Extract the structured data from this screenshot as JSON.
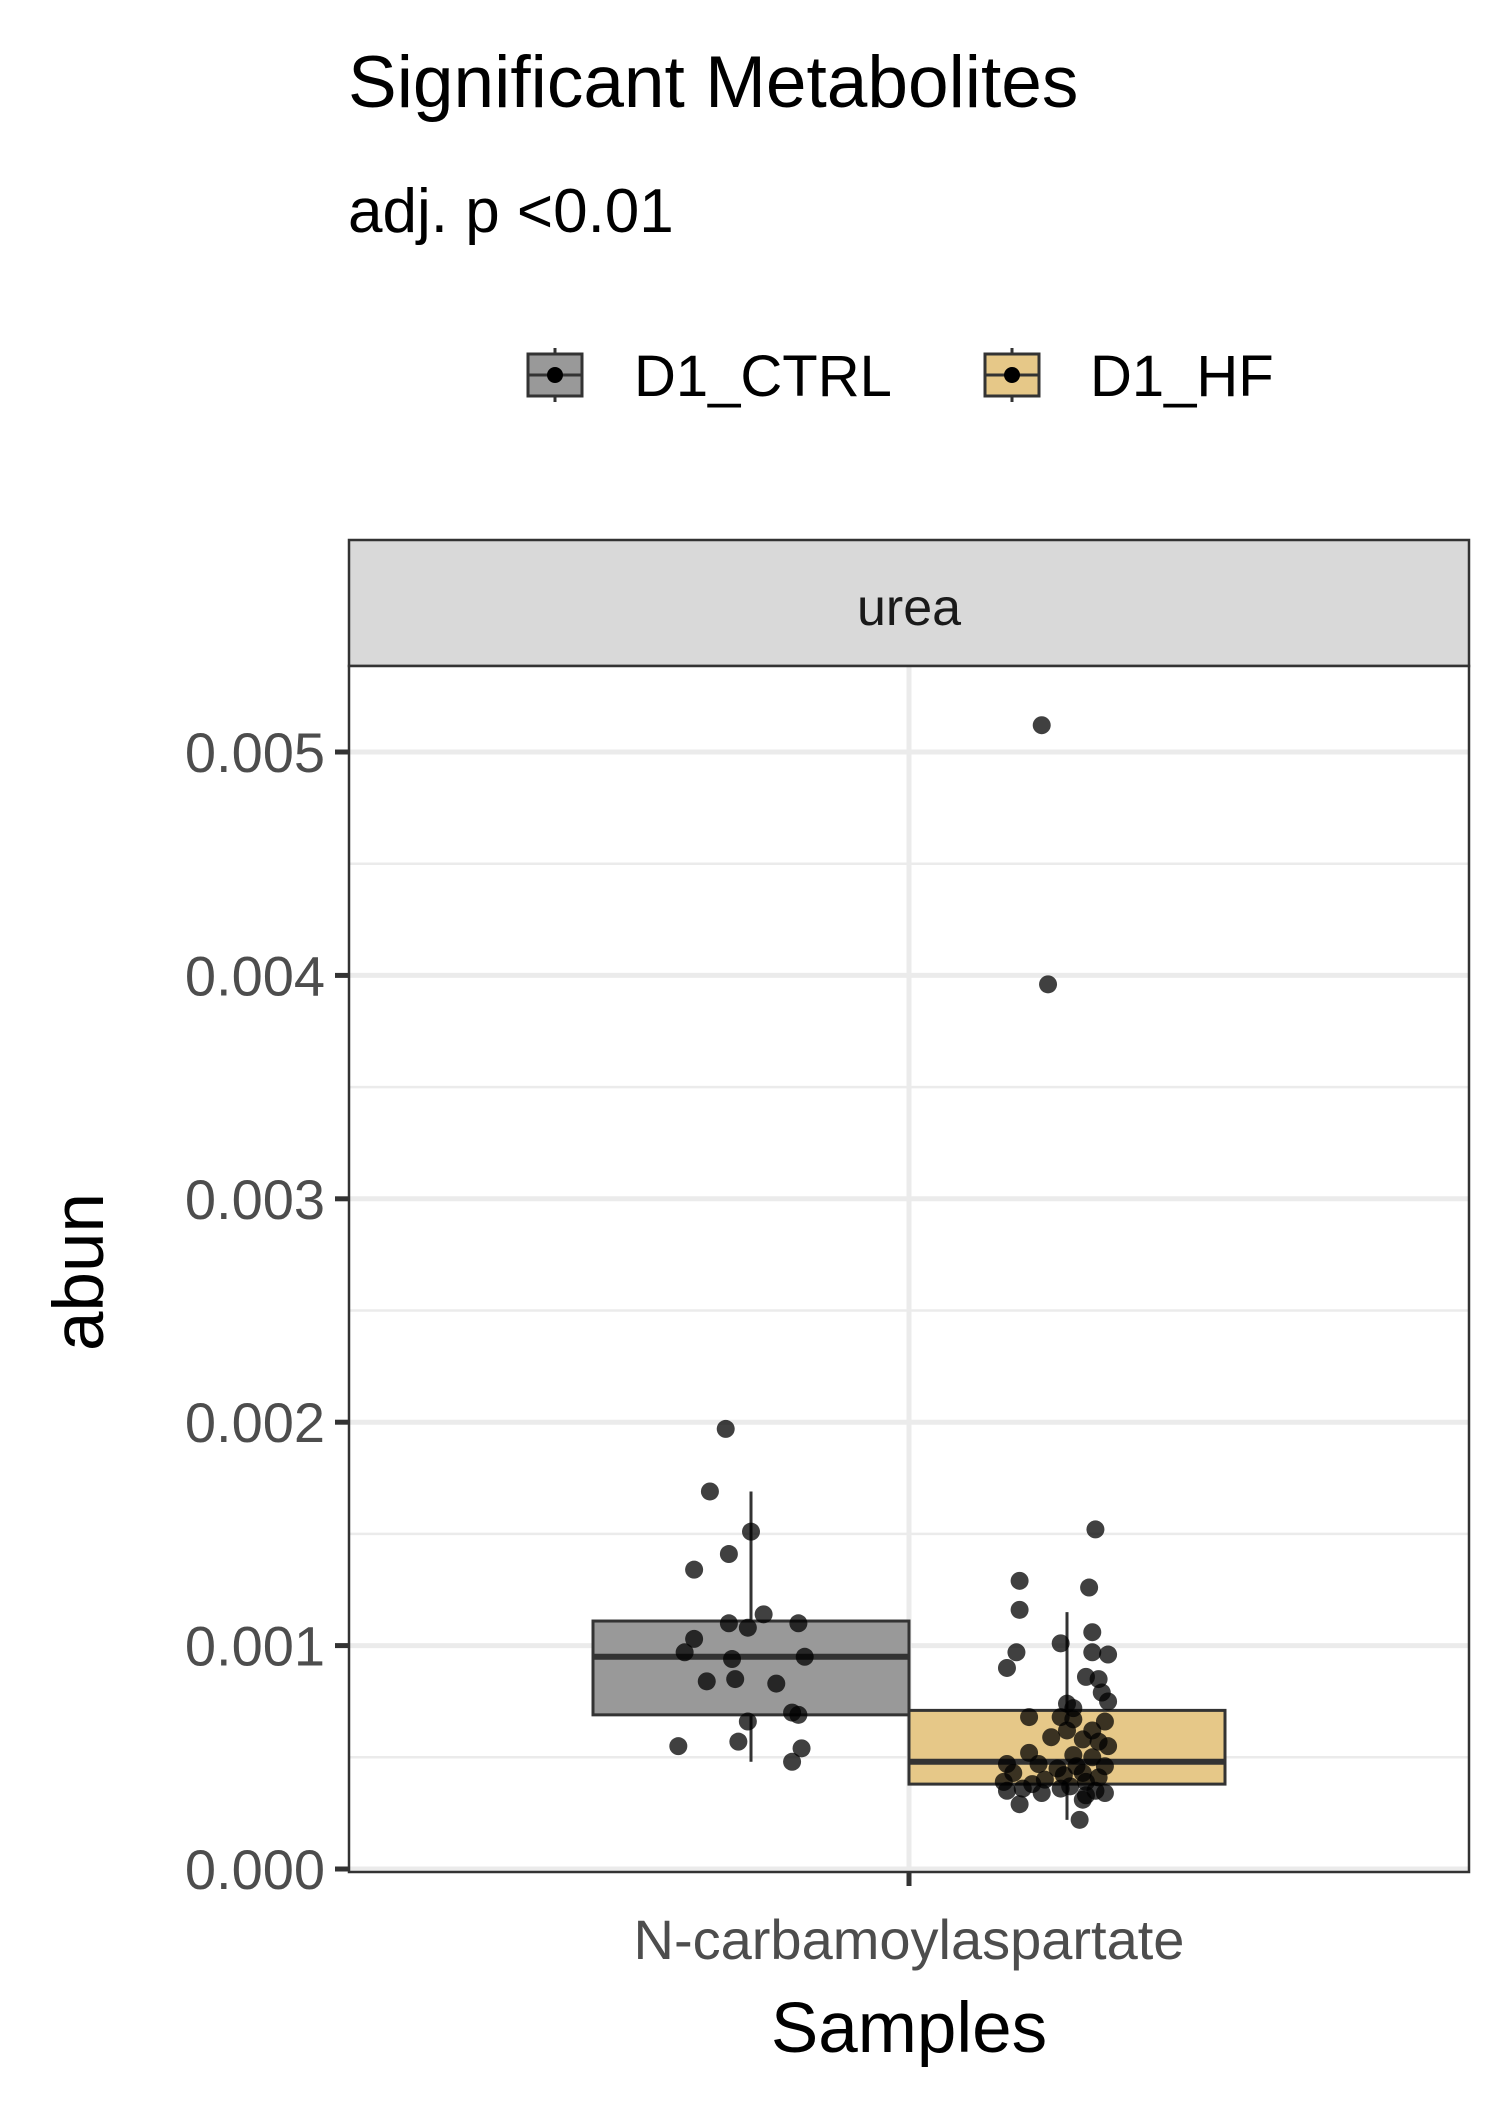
{
  "chart_data": {
    "type": "box",
    "title": "Significant Metabolites",
    "subtitle": "adj. p <0.01",
    "facet_label": "urea",
    "xlabel": "Samples",
    "ylabel": "abun",
    "categories": [
      "N-carbamoylaspartate"
    ],
    "ylim": [
      -5e-05,
      0.0054
    ],
    "yticks": [
      0,
      0.001,
      0.002,
      0.003,
      0.004,
      0.005
    ],
    "ytick_labels": [
      "0.000",
      "0.001",
      "0.002",
      "0.003",
      "0.004",
      "0.005"
    ],
    "grid": true,
    "legend_position": "top",
    "series": [
      {
        "name": "D1_CTRL",
        "color": "#999999",
        "box": {
          "q1": 0.00069,
          "median": 0.00095,
          "q3": 0.00111,
          "whisker_low": 0.00048,
          "whisker_high": 0.00169
        },
        "points": [
          {
            "x": -0.08,
            "y": 0.00197
          },
          {
            "x": -0.13,
            "y": 0.00169
          },
          {
            "x": 0.0,
            "y": 0.00151
          },
          {
            "x": -0.07,
            "y": 0.00141
          },
          {
            "x": -0.18,
            "y": 0.00134
          },
          {
            "x": 0.04,
            "y": 0.00114
          },
          {
            "x": 0.15,
            "y": 0.0011
          },
          {
            "x": -0.07,
            "y": 0.0011
          },
          {
            "x": -0.01,
            "y": 0.00108
          },
          {
            "x": -0.18,
            "y": 0.00103
          },
          {
            "x": -0.21,
            "y": 0.00097
          },
          {
            "x": -0.06,
            "y": 0.00094
          },
          {
            "x": 0.17,
            "y": 0.00095
          },
          {
            "x": -0.14,
            "y": 0.00084
          },
          {
            "x": -0.05,
            "y": 0.00085
          },
          {
            "x": 0.08,
            "y": 0.00083
          },
          {
            "x": 0.13,
            "y": 0.0007
          },
          {
            "x": 0.15,
            "y": 0.00069
          },
          {
            "x": -0.01,
            "y": 0.00066
          },
          {
            "x": -0.04,
            "y": 0.00057
          },
          {
            "x": -0.23,
            "y": 0.00055
          },
          {
            "x": 0.16,
            "y": 0.00054
          },
          {
            "x": 0.13,
            "y": 0.00048
          }
        ]
      },
      {
        "name": "D1_HF",
        "color": "#E6C888",
        "box": {
          "q1": 0.00038,
          "median": 0.00048,
          "q3": 0.00071,
          "whisker_low": 0.00022,
          "whisker_high": 0.00115
        },
        "points": [
          {
            "x": -0.08,
            "y": 0.00512
          },
          {
            "x": -0.06,
            "y": 0.00396
          },
          {
            "x": 0.09,
            "y": 0.00152
          },
          {
            "x": -0.15,
            "y": 0.00129
          },
          {
            "x": 0.07,
            "y": 0.00126
          },
          {
            "x": -0.15,
            "y": 0.00116
          },
          {
            "x": -0.02,
            "y": 0.00101
          },
          {
            "x": -0.16,
            "y": 0.00097
          },
          {
            "x": 0.13,
            "y": 0.00096
          },
          {
            "x": 0.08,
            "y": 0.00097
          },
          {
            "x": -0.19,
            "y": 0.0009
          },
          {
            "x": 0.08,
            "y": 0.00106
          },
          {
            "x": 0.06,
            "y": 0.00086
          },
          {
            "x": 0.1,
            "y": 0.00085
          },
          {
            "x": 0.11,
            "y": 0.00079
          },
          {
            "x": 0.13,
            "y": 0.00075
          },
          {
            "x": 0.0,
            "y": 0.00074
          },
          {
            "x": 0.02,
            "y": 0.00072
          },
          {
            "x": -0.12,
            "y": 0.00068
          },
          {
            "x": 0.02,
            "y": 0.00067
          },
          {
            "x": -0.02,
            "y": 0.00068
          },
          {
            "x": 0.12,
            "y": 0.00066
          },
          {
            "x": 0.0,
            "y": 0.00062
          },
          {
            "x": 0.08,
            "y": 0.00062
          },
          {
            "x": -0.05,
            "y": 0.00059
          },
          {
            "x": 0.05,
            "y": 0.00058
          },
          {
            "x": 0.1,
            "y": 0.00057
          },
          {
            "x": 0.13,
            "y": 0.00055
          },
          {
            "x": -0.12,
            "y": 0.00052
          },
          {
            "x": 0.02,
            "y": 0.00051
          },
          {
            "x": 0.08,
            "y": 0.0005
          },
          {
            "x": -0.19,
            "y": 0.00047
          },
          {
            "x": -0.09,
            "y": 0.00047
          },
          {
            "x": 0.03,
            "y": 0.00046
          },
          {
            "x": 0.12,
            "y": 0.00046
          },
          {
            "x": -0.03,
            "y": 0.00045
          },
          {
            "x": -0.17,
            "y": 0.00043
          },
          {
            "x": 0.05,
            "y": 0.00043
          },
          {
            "x": -0.01,
            "y": 0.00042
          },
          {
            "x": 0.1,
            "y": 0.00041
          },
          {
            "x": -0.07,
            "y": 0.0004
          },
          {
            "x": 0.06,
            "y": 0.00039
          },
          {
            "x": -0.2,
            "y": 0.00039
          },
          {
            "x": -0.11,
            "y": 0.00038
          },
          {
            "x": 0.01,
            "y": 0.00037
          },
          {
            "x": -0.14,
            "y": 0.00036
          },
          {
            "x": -0.19,
            "y": 0.00035
          },
          {
            "x": 0.09,
            "y": 0.00035
          },
          {
            "x": -0.02,
            "y": 0.00036
          },
          {
            "x": 0.12,
            "y": 0.00034
          },
          {
            "x": -0.08,
            "y": 0.00034
          },
          {
            "x": 0.06,
            "y": 0.00033
          },
          {
            "x": 0.05,
            "y": 0.00031
          },
          {
            "x": -0.15,
            "y": 0.00029
          },
          {
            "x": 0.04,
            "y": 0.00022
          }
        ]
      }
    ]
  }
}
